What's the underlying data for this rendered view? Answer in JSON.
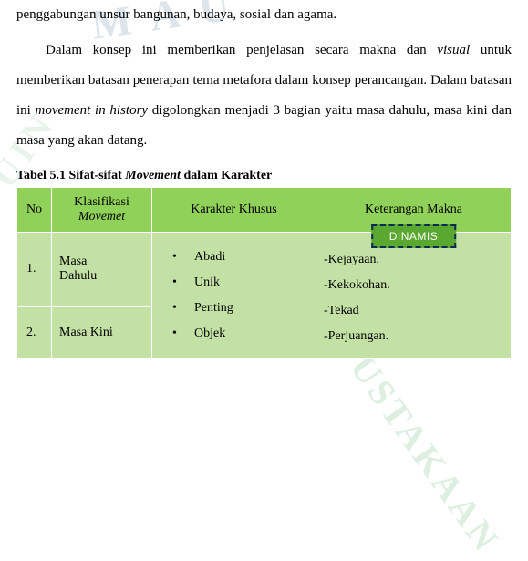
{
  "paragraphs": {
    "p1": "penggabungan unsur bangunan, budaya, sosial dan agama.",
    "p2_a": "Dalam konsep ini memberikan penjelasan secara makna dan ",
    "p2_visual": "visual",
    "p2_b": " untuk memberikan batasan penerapan tema metafora dalam konsep perancangan. Dalam batasan ini ",
    "p2_move": "movement in history",
    "p2_c": " digolongkan menjadi 3 bagian yaitu masa dahulu, masa kini dan masa yang akan datang."
  },
  "caption": {
    "pre": "Tabel 5.1 Sifat-sifat ",
    "it": "Movement",
    "post": " dalam Karakter"
  },
  "table": {
    "headers": {
      "no": "No",
      "klas_a": "Klasifikasi",
      "klas_b": "Movemet",
      "kar": "Karakter Khusus",
      "ket": "Keterangan Makna"
    },
    "rows": {
      "r1_no": "1.",
      "r1_klas_a": "Masa",
      "r1_klas_b": "Dahulu",
      "r2_no": "2.",
      "r2_klas": "Masa Kini"
    },
    "karakter": {
      "b1": "Abadi",
      "b2": "Unik",
      "b3": "Penting",
      "b4": "Objek"
    },
    "keterangan": {
      "badge": "DINAMIS",
      "k1": "-Kejayaan.",
      "k2": "-Kekokohan.",
      "k3": "-Tekad",
      "k4": "-Perjuangan."
    }
  },
  "colors": {
    "header_bg": "#8fd159",
    "cell_bg": "#c4e1a5",
    "badge_bg": "#5aa82f",
    "badge_border": "#0a2a55",
    "text": "#000000"
  }
}
